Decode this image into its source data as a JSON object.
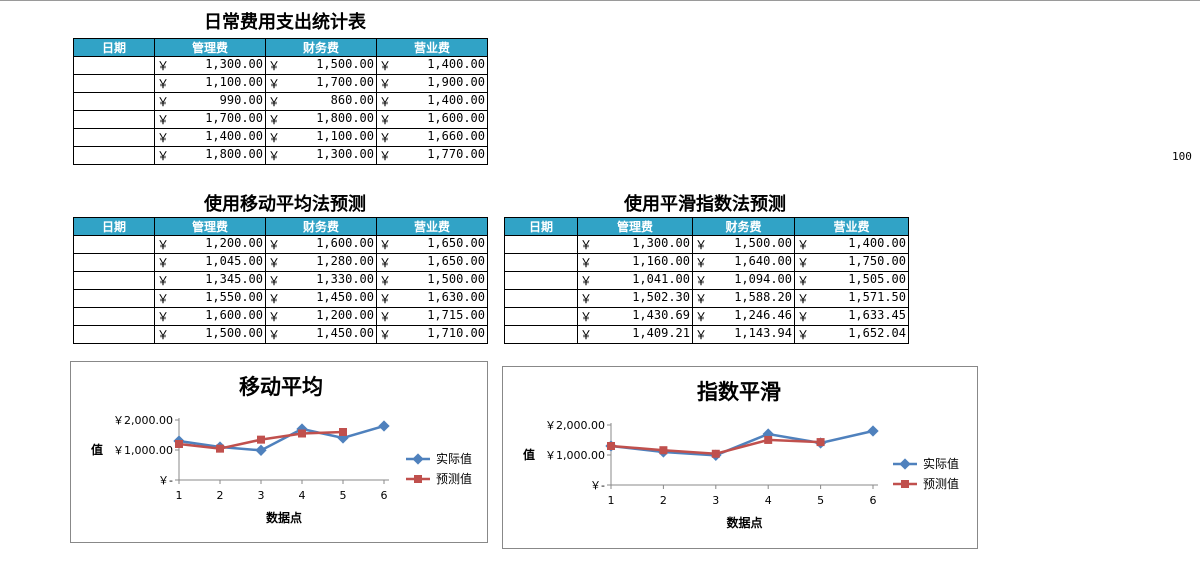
{
  "side_value": "100",
  "colors": {
    "header_bg": "#31a3c6",
    "actual": "#4f81bd",
    "predict": "#c0504d"
  },
  "table1": {
    "title": "日常费用支出统计表",
    "headers": [
      "日期",
      "管理费",
      "财务费",
      "营业费"
    ],
    "rows": [
      [
        "",
        "1,300.00",
        "1,500.00",
        "1,400.00"
      ],
      [
        "",
        "1,100.00",
        "1,700.00",
        "1,900.00"
      ],
      [
        "",
        "990.00",
        "860.00",
        "1,400.00"
      ],
      [
        "",
        "1,700.00",
        "1,800.00",
        "1,600.00"
      ],
      [
        "",
        "1,400.00",
        "1,100.00",
        "1,660.00"
      ],
      [
        "",
        "1,800.00",
        "1,300.00",
        "1,770.00"
      ]
    ]
  },
  "table2": {
    "title": "使用移动平均法预测",
    "headers": [
      "日期",
      "管理费",
      "财务费",
      "营业费"
    ],
    "rows": [
      [
        "",
        "1,200.00",
        "1,600.00",
        "1,650.00"
      ],
      [
        "",
        "1,045.00",
        "1,280.00",
        "1,650.00"
      ],
      [
        "",
        "1,345.00",
        "1,330.00",
        "1,500.00"
      ],
      [
        "",
        "1,550.00",
        "1,450.00",
        "1,630.00"
      ],
      [
        "",
        "1,600.00",
        "1,200.00",
        "1,715.00"
      ],
      [
        "",
        "1,500.00",
        "1,450.00",
        "1,710.00"
      ]
    ]
  },
  "table3": {
    "title": "使用平滑指数法预测",
    "headers": [
      "日期",
      "管理费",
      "财务费",
      "营业费"
    ],
    "rows": [
      [
        "",
        "1,300.00",
        "1,500.00",
        "1,400.00"
      ],
      [
        "",
        "1,160.00",
        "1,640.00",
        "1,750.00"
      ],
      [
        "",
        "1,041.00",
        "1,094.00",
        "1,505.00"
      ],
      [
        "",
        "1,502.30",
        "1,588.20",
        "1,571.50"
      ],
      [
        "",
        "1,430.69",
        "1,246.46",
        "1,633.45"
      ],
      [
        "",
        "1,409.21",
        "1,143.94",
        "1,652.04"
      ]
    ]
  },
  "currency": "￥",
  "chart_data": [
    {
      "type": "line",
      "title": "移动平均",
      "xlabel": "数据点",
      "ylabel": "值",
      "x": [
        1,
        2,
        3,
        4,
        5,
        6
      ],
      "y_ticks": [
        "￥2,000.00",
        "￥1,000.00",
        "￥-"
      ],
      "ylim": [
        0,
        2000
      ],
      "series": [
        {
          "name": "实际值",
          "values": [
            1300,
            1100,
            990,
            1700,
            1400,
            1800
          ]
        },
        {
          "name": "预测值",
          "values": [
            1200,
            1045,
            1345,
            1550,
            1600,
            null
          ]
        }
      ],
      "legend": "right"
    },
    {
      "type": "line",
      "title": "指数平滑",
      "xlabel": "数据点",
      "ylabel": "值",
      "x": [
        1,
        2,
        3,
        4,
        5,
        6
      ],
      "y_ticks": [
        "￥2,000.00",
        "￥1,000.00",
        "￥-"
      ],
      "ylim": [
        0,
        2000
      ],
      "series": [
        {
          "name": "实际值",
          "values": [
            1300,
            1100,
            990,
            1700,
            1400,
            1800
          ]
        },
        {
          "name": "预测值",
          "values": [
            1300,
            1160,
            1041,
            1502.3,
            1430.69,
            null
          ]
        }
      ],
      "legend": "right"
    }
  ]
}
